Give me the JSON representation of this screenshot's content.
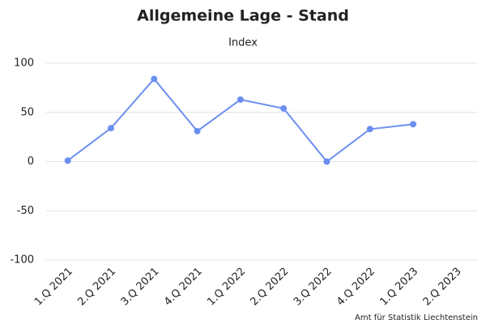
{
  "chart_data": {
    "type": "line",
    "title": "Allgemeine Lage - Stand",
    "subtitle": "Index",
    "categories": [
      "1.Q 2021",
      "2.Q 2021",
      "3.Q 2021",
      "4.Q 2021",
      "1.Q 2022",
      "2.Q 2022",
      "3.Q 2022",
      "4.Q 2022",
      "1.Q 2023",
      "2.Q 2023"
    ],
    "values": [
      1,
      34,
      84,
      31,
      63,
      54,
      0,
      33,
      38,
      null
    ],
    "color": "#6b8ff0",
    "ylim": [
      -100,
      100
    ],
    "yticks": [
      -100,
      -50,
      0,
      50,
      100
    ],
    "grid": true,
    "credit": "Amt für Statistik Liechtenstein"
  }
}
